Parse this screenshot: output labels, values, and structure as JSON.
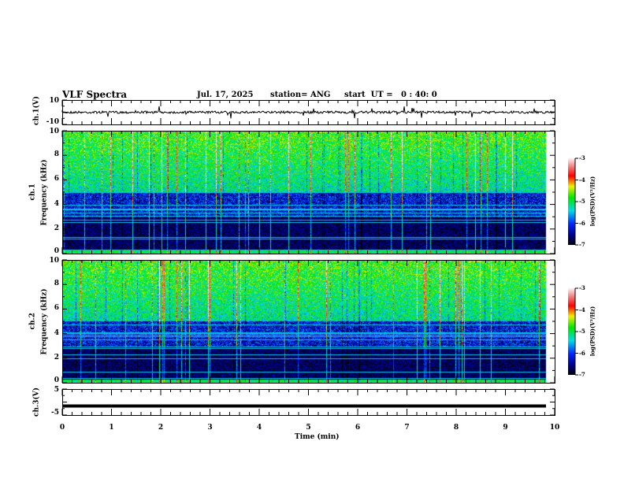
{
  "header": {
    "title": "VLF Spectra",
    "date": "Jul. 17, 2025",
    "station": "station= ANG",
    "start_ut": "start  UT =   0 : 40: 0"
  },
  "chart_data": [
    {
      "type": "line",
      "ylabel": "ch.1(V)",
      "ylim": [
        -10,
        10
      ],
      "yticks": [
        "10",
        "-10"
      ],
      "xlim": [
        0,
        10
      ],
      "description_values": {
        "baseline": 0
      }
    },
    {
      "type": "heatmap",
      "ylabel_top": "ch.1",
      "ylabel": "Frequency (kHz)",
      "ylim": [
        0,
        10
      ],
      "yticks": [
        "0",
        "2",
        "4",
        "6",
        "8",
        "10"
      ],
      "xlim": [
        0,
        10
      ],
      "colorbar": {
        "label": "log(PSD)(V²/Hz)",
        "range": [
          -7,
          -3
        ],
        "ticks": [
          "-3",
          "-4",
          "-5",
          "-6",
          "-7"
        ]
      }
    },
    {
      "type": "heatmap",
      "ylabel_top": "ch.2",
      "ylabel": "Frequency (kHz)",
      "ylim": [
        0,
        10
      ],
      "yticks": [
        "0",
        "2",
        "4",
        "6",
        "8",
        "10"
      ],
      "xlim": [
        0,
        10
      ],
      "colorbar": {
        "label": "log(PSD)(V²/Hz)",
        "range": [
          -7,
          -3
        ],
        "ticks": [
          "-3",
          "-4",
          "-5",
          "-6",
          "-7"
        ]
      }
    },
    {
      "type": "line",
      "ylabel": "ch.3(V)",
      "ylim": [
        -5,
        5
      ],
      "yticks": [
        "5",
        "-5"
      ],
      "xlim": [
        0,
        10
      ],
      "values_constant": -1.5
    }
  ],
  "xaxis": {
    "label": "Time (min)",
    "ticks": [
      "0",
      "1",
      "2",
      "3",
      "4",
      "5",
      "6",
      "7",
      "8",
      "9",
      "10"
    ]
  }
}
